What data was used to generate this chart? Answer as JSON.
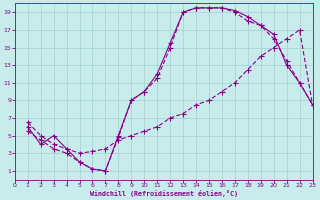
{
  "xlabel": "Windchill (Refroidissement éolien,°C)",
  "bg_color": "#c8ecec",
  "grid_color": "#aad4d4",
  "line_color": "#880088",
  "xmin": 0,
  "xmax": 23,
  "ymin": 0,
  "ymax": 20,
  "xticks": [
    0,
    1,
    2,
    3,
    4,
    5,
    6,
    7,
    8,
    9,
    10,
    11,
    12,
    13,
    14,
    15,
    16,
    17,
    18,
    19,
    20,
    21,
    22,
    23
  ],
  "yticks": [
    1,
    3,
    5,
    7,
    9,
    11,
    13,
    15,
    17,
    19
  ],
  "curve1_x": [
    1,
    2,
    3,
    4,
    5,
    6,
    7,
    8,
    9,
    10,
    11,
    12,
    13,
    14,
    15,
    16,
    17,
    18,
    19,
    20,
    21,
    22,
    23
  ],
  "curve1_y": [
    6.0,
    4.0,
    5.0,
    3.5,
    2.0,
    1.2,
    1.0,
    5.0,
    9.0,
    10.0,
    12.0,
    15.5,
    19.0,
    19.5,
    19.5,
    19.5,
    19.2,
    18.5,
    17.5,
    16.5,
    13.0,
    11.0,
    8.5
  ],
  "curve2_x": [
    1,
    2,
    3,
    4,
    5,
    6,
    7,
    8,
    9,
    10,
    11,
    12,
    13,
    14,
    15,
    16,
    17,
    18,
    19,
    20,
    21,
    22,
    23
  ],
  "curve2_y": [
    5.5,
    4.5,
    3.5,
    3.0,
    2.0,
    1.2,
    1.0,
    4.8,
    9.0,
    10.0,
    11.5,
    15.0,
    19.0,
    19.5,
    19.5,
    19.5,
    19.0,
    18.0,
    17.5,
    16.0,
    13.5,
    11.0,
    8.5
  ],
  "curve3_x": [
    1,
    2,
    3,
    4,
    5,
    6,
    7,
    8,
    9,
    10,
    11,
    12,
    13,
    14,
    15,
    16,
    17,
    18,
    19,
    20,
    21,
    22,
    23
  ],
  "curve3_y": [
    6.5,
    5.0,
    4.0,
    3.5,
    3.0,
    3.2,
    3.5,
    4.5,
    5.0,
    5.5,
    6.0,
    7.0,
    7.5,
    8.5,
    9.0,
    10.0,
    11.0,
    12.5,
    14.0,
    15.0,
    16.0,
    17.0,
    8.5
  ]
}
